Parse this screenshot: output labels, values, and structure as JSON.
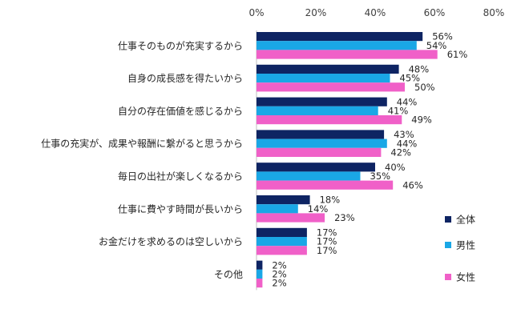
{
  "chart_data": {
    "type": "bar",
    "orientation": "horizontal",
    "title": "",
    "xlabel": "",
    "ylabel": "",
    "xlim": [
      0,
      80
    ],
    "ticks": [
      "0%",
      "20%",
      "40%",
      "60%",
      "80%"
    ],
    "tick_values": [
      0,
      20,
      40,
      60,
      80
    ],
    "tick_position": "top",
    "grid": false,
    "legend_position": "right",
    "categories": [
      "仕事そのものが充実するから",
      "自身の成長感を得たいから",
      "自分の存在価値を感じるから",
      "仕事の充実が、成果や報酬に繋がると思うから",
      "毎日の出社が楽しくなるから",
      "仕事に費やす時間が長いから",
      "お金だけを求めるのは空しいから",
      "その他"
    ],
    "series": [
      {
        "name": "全体",
        "color": "#0e2463",
        "values": [
          56,
          48,
          44,
          43,
          40,
          18,
          17,
          2
        ],
        "labels": [
          "56%",
          "48%",
          "44%",
          "43%",
          "40%",
          "18%",
          "17%",
          "2%"
        ]
      },
      {
        "name": "男性",
        "color": "#1aa7e6",
        "values": [
          54,
          45,
          41,
          44,
          35,
          14,
          17,
          2
        ],
        "labels": [
          "54%",
          "45%",
          "41%",
          "44%",
          "35%",
          "14%",
          "17%",
          "2%"
        ]
      },
      {
        "name": "女性",
        "color": "#f060c8",
        "values": [
          61,
          50,
          49,
          42,
          46,
          23,
          17,
          2
        ],
        "labels": [
          "61%",
          "50%",
          "49%",
          "42%",
          "46%",
          "23%",
          "17%",
          "2%"
        ]
      }
    ]
  }
}
